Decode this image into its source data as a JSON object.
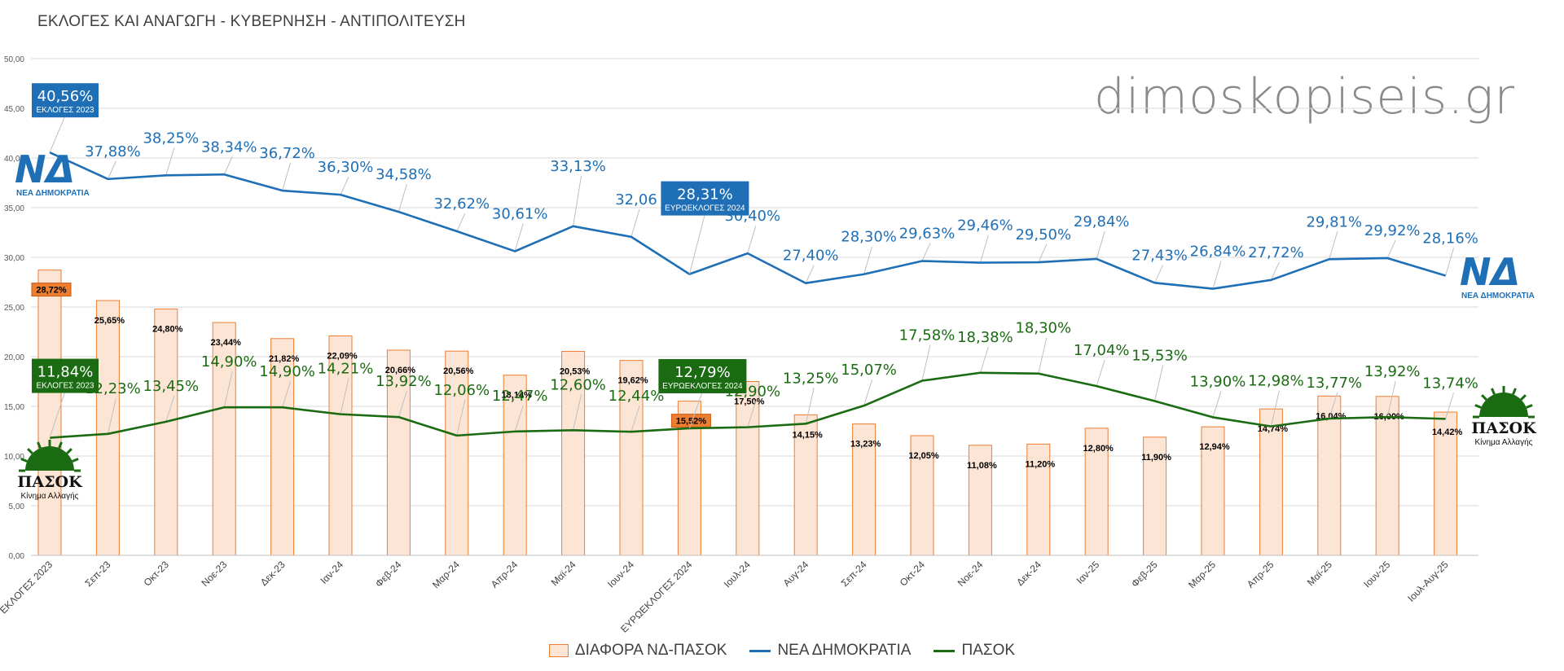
{
  "page_title": "ΕΚΛΟΓΕΣ ΚΑΙ ΑΝΑΓΩΓΗ  - ΚΥΒΕΡΝΗΣΗ - ΑΝΤΙΠΟΛΙΤΕΥΣΗ",
  "watermark": "dimoskopiseis.gr",
  "colors": {
    "nd": "#1f6fb6",
    "pasok": "#1a6b12",
    "diff_fill": "#fde5d6",
    "diff_stroke": "#ed7d31",
    "highlight_orange": "#ed7d31"
  },
  "chart_data": {
    "type": "bar+line",
    "title": "ΕΚΛΟΓΕΣ ΚΑΙ ΑΝΑΓΩΓΗ  - ΚΥΒΕΡΝΗΣΗ - ΑΝΤΙΠΟΛΙΤΕΥΣΗ",
    "categories": [
      "ΕΚΛΟΓΕΣ 2023",
      "Σεπ-23",
      "Οκτ-23",
      "Νοε-23",
      "Δεκ-23",
      "Ιαν-24",
      "Φεβ-24",
      "Μαρ-24",
      "Απρ-24",
      "Μαϊ-24",
      "Ιουν-24",
      "ΕΥΡΩΕΚΛΟΓΕΣ 2024",
      "Ιουλ-24",
      "Αυγ-24",
      "Σεπ-24",
      "Οκτ-24",
      "Νοε-24",
      "Δεκ-24",
      "Ιαν-25",
      "Φεβ-25",
      "Μαρ-25",
      "Απρ-25",
      "Μαϊ-25",
      "Ιουν-25",
      "Ιουλ-Αυγ-25"
    ],
    "ylim": [
      0,
      50
    ],
    "yticks": [
      "0,00",
      "5,00",
      "10,00",
      "15,00",
      "20,00",
      "25,00",
      "30,00",
      "35,00",
      "40,00",
      "45,00",
      "50,00"
    ],
    "series": [
      {
        "name": "ΔΙΑΦΟΡΑ ΝΔ-ΠΑΣΟΚ",
        "kind": "bar",
        "values": [
          28.72,
          25.65,
          24.8,
          23.44,
          21.82,
          22.09,
          20.66,
          20.56,
          18.14,
          20.53,
          19.62,
          15.52,
          17.5,
          14.15,
          13.23,
          12.05,
          11.08,
          11.2,
          12.8,
          11.9,
          12.94,
          14.74,
          16.04,
          16.0,
          14.42
        ],
        "labels": [
          "28,72%",
          "25,65%",
          "24,80%",
          "23,44%",
          "21,82%",
          "22,09%",
          "20,66%",
          "20,56%",
          "18,14%",
          "20,53%",
          "19,62%",
          "15,52%",
          "17,50%",
          "14,15%",
          "13,23%",
          "12,05%",
          "11,08%",
          "11,20%",
          "12,80%",
          "11,90%",
          "12,94%",
          "14,74%",
          "16,04%",
          "16,00%",
          "14,42%"
        ]
      },
      {
        "name": "ΝΕΑ ΔΗΜΟΚΡΑΤΙΑ",
        "kind": "line",
        "values": [
          40.56,
          37.88,
          38.25,
          38.34,
          36.72,
          36.3,
          34.58,
          32.62,
          30.61,
          33.13,
          32.06,
          28.31,
          30.4,
          27.4,
          28.3,
          29.63,
          29.46,
          29.5,
          29.84,
          27.43,
          26.84,
          27.72,
          29.81,
          29.92,
          28.16
        ],
        "labels": [
          "40,56%",
          "37,88%",
          "38,25%",
          "38,34%",
          "36,72%",
          "36,30%",
          "34,58%",
          "32,62%",
          "30,61%",
          "33,13%",
          "32,06",
          "28,31%",
          "30,40%",
          "27,40%",
          "28,30%",
          "29,63%",
          "29,46%",
          "29,50%",
          "29,84%",
          "27,43%",
          "26,84%",
          "27,72%",
          "29,81%",
          "29,92%",
          "28,16%"
        ]
      },
      {
        "name": "ΠΑΣΟΚ",
        "kind": "line",
        "values": [
          11.84,
          12.23,
          13.45,
          14.9,
          14.9,
          14.21,
          13.92,
          12.06,
          12.47,
          12.6,
          12.44,
          12.79,
          12.9,
          13.25,
          15.07,
          17.58,
          18.38,
          18.3,
          17.04,
          15.53,
          13.9,
          12.98,
          13.77,
          13.92,
          13.74
        ],
        "labels": [
          "11,84%",
          "12,23%",
          "13,45%",
          "14,90%",
          "14,90%",
          "14,21%",
          "13,92%",
          "12,06%",
          "12,47%",
          "12,60%",
          "12,44%",
          "12,79%",
          "12,90%",
          "13,25%",
          "15,07%",
          "17,58%",
          "18,38%",
          "18,30%",
          "17,04%",
          "15,53%",
          "13,90%",
          "12,98%",
          "13,77%",
          "13,92%",
          "13,74%"
        ]
      }
    ],
    "annotations": {
      "nd_election": {
        "value": "40,56%",
        "caption": "ΕΚΛΟΓΕΣ 2023"
      },
      "nd_euro": {
        "value": "28,31%",
        "caption": "ΕΥΡΩΕΚΛΟΓΕΣ 2024"
      },
      "pasok_election": {
        "value": "11,84%",
        "caption": "ΕΚΛΟΓΕΣ 2023"
      },
      "pasok_euro": {
        "value": "12,79%",
        "caption": "ΕΥΡΩΕΚΛΟΓΕΣ 2024"
      }
    },
    "legend_position": "bottom-center"
  },
  "logos": {
    "nd": {
      "mark": "ΝΔ",
      "caption": "ΝΕΑ ΔΗΜΟΚΡΑΤΙΑ"
    },
    "pasok": {
      "mark": "ΠΑΣΟΚ",
      "caption": "Κίνημα Αλλαγής"
    }
  },
  "legend": [
    "ΔΙΑΦΟΡΑ ΝΔ-ΠΑΣΟΚ",
    "ΝΕΑ ΔΗΜΟΚΡΑΤΙΑ",
    "ΠΑΣΟΚ"
  ]
}
